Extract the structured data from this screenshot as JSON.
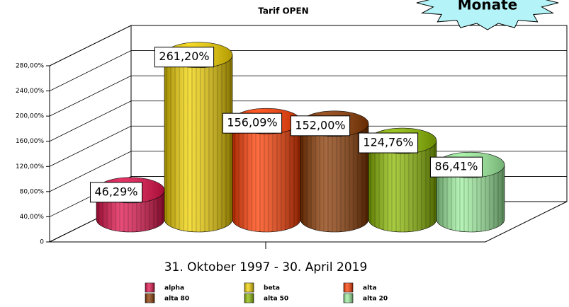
{
  "chart_data": {
    "type": "bar",
    "title": "Tarif OPEN",
    "annotation": "Monate",
    "categories": [
      "31. Oktober 1997 - 30. April 2019"
    ],
    "series": [
      {
        "name": "alpha",
        "color": "#e0104a",
        "values": [
          46.29
        ],
        "value_labels": [
          "46,29%"
        ]
      },
      {
        "name": "beta",
        "color": "#f2d200",
        "values": [
          261.2
        ],
        "value_labels": [
          "261,20%"
        ]
      },
      {
        "name": "alta",
        "color": "#ff3c00",
        "values": [
          156.09
        ],
        "value_labels": [
          "156,09%"
        ]
      },
      {
        "name": "alta 80",
        "color": "#8a3800",
        "values": [
          152.0
        ],
        "value_labels": [
          "152,00%"
        ]
      },
      {
        "name": "alta 50",
        "color": "#8cba00",
        "values": [
          124.76
        ],
        "value_labels": [
          "124,76%"
        ]
      },
      {
        "name": "alta 20",
        "color": "#9ef09e",
        "values": [
          86.41
        ],
        "value_labels": [
          "86,41%"
        ]
      }
    ],
    "ylim": [
      0,
      280
    ],
    "yticks": [
      0,
      {
        "value": 40,
        "label": "40,00%"
      },
      {
        "value": 80,
        "label": "80,00%"
      },
      {
        "value": 120,
        "label": "120,00%"
      },
      {
        "value": 160,
        "label": "160,00%"
      },
      {
        "value": 200,
        "label": "200,00%"
      },
      {
        "value": 240,
        "label": "240,00%"
      },
      {
        "value": 280,
        "label": "280,00%"
      }
    ],
    "grid": true
  }
}
